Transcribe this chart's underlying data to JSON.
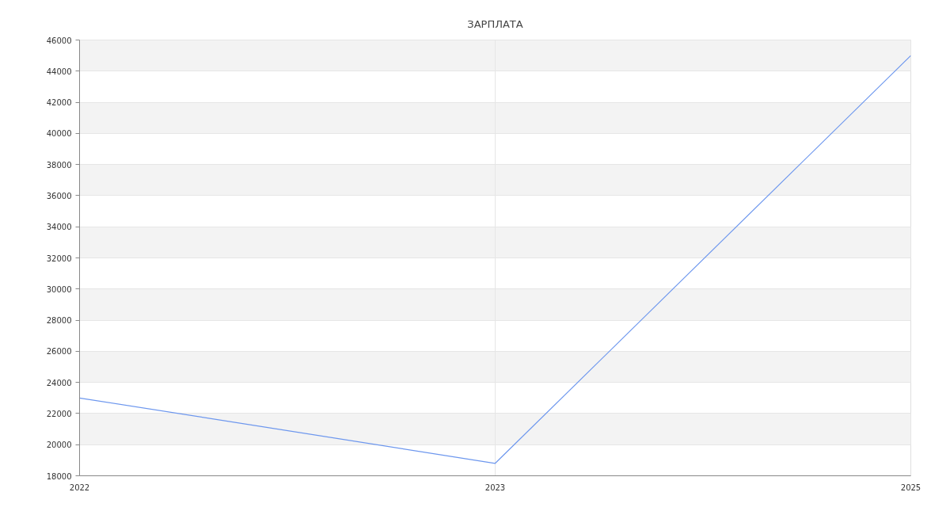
{
  "chart_data": {
    "type": "line",
    "title": "ЗАРПЛАТА",
    "categories": [
      "2022",
      "2023",
      "2025"
    ],
    "series": [
      {
        "color": "#6d97ee",
        "values": [
          23000,
          18800,
          45000
        ]
      }
    ],
    "ylim": [
      18000,
      46000
    ],
    "yticks": [
      18000,
      20000,
      22000,
      24000,
      26000,
      28000,
      30000,
      32000,
      34000,
      36000,
      38000,
      40000,
      42000,
      44000,
      46000
    ],
    "grid": true,
    "marker": "none",
    "line_style": "solid"
  }
}
